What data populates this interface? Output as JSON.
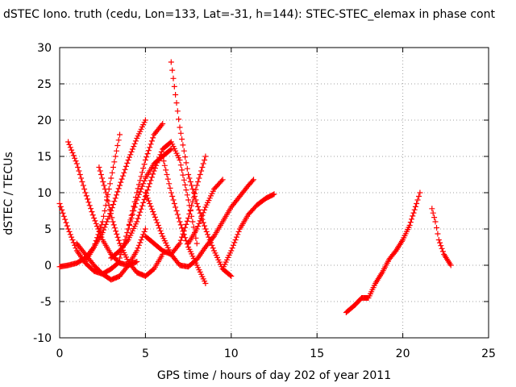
{
  "chart_data": {
    "type": "scatter",
    "title": "dSTEC Iono. truth (cedu, Lon=133, Lat=-31, h=144): STEC-STEC_elemax in phase cont",
    "xlabel": "GPS time / hours of day 202 of year 2011",
    "ylabel": "dSTEC  / TECUs",
    "xlim": [
      0,
      25
    ],
    "ylim": [
      -10,
      30
    ],
    "xticks": [
      "0",
      "5",
      "10",
      "15",
      "20",
      "25"
    ],
    "yticks": [
      "-10",
      "-5",
      "0",
      "5",
      "10",
      "15",
      "20",
      "25",
      "30"
    ],
    "grid": true,
    "marker": "+",
    "color": "#ff0000",
    "series": [
      {
        "x": [
          0.0,
          0.5,
          1.0,
          1.5,
          2.0,
          2.5,
          3.0,
          3.5
        ],
        "y": [
          8.5,
          5.0,
          2.0,
          0.3,
          -0.8,
          -1.2,
          -0.5,
          0.5
        ]
      },
      {
        "x": [
          0.0,
          0.5,
          1.0,
          1.5,
          2.0,
          2.5,
          3.0,
          3.5,
          4.0,
          4.5,
          5.0
        ],
        "y": [
          -0.2,
          0.0,
          0.3,
          1.0,
          2.5,
          4.5,
          7.5,
          11.0,
          14.5,
          17.5,
          20.0
        ]
      },
      {
        "x": [
          0.5,
          1.0,
          1.5,
          2.0,
          2.5,
          3.0,
          3.5,
          4.0,
          4.5
        ],
        "y": [
          17.0,
          14.0,
          10.0,
          6.5,
          3.5,
          1.5,
          0.3,
          0.0,
          0.5
        ]
      },
      {
        "x": [
          1.0,
          1.5,
          2.0,
          2.5,
          3.0,
          3.5,
          4.0,
          4.5,
          5.0
        ],
        "y": [
          3.0,
          1.5,
          0.0,
          -1.2,
          -2.0,
          -1.5,
          0.0,
          2.0,
          5.0
        ]
      },
      {
        "x": [
          1.5,
          2.0,
          2.5,
          3.0,
          3.5
        ],
        "y": [
          0.5,
          2.5,
          6.0,
          12.0,
          18.0
        ]
      },
      {
        "x": [
          2.3,
          2.7,
          3.1,
          3.5,
          4.0,
          4.5,
          5.0,
          5.5,
          6.0
        ],
        "y": [
          13.5,
          10.0,
          6.0,
          3.0,
          0.5,
          -1.0,
          -1.5,
          -0.5,
          1.5
        ]
      },
      {
        "x": [
          3.5,
          4.0,
          4.5,
          5.0,
          5.5,
          6.0
        ],
        "y": [
          1.0,
          5.0,
          10.0,
          14.5,
          18.0,
          19.5
        ]
      },
      {
        "x": [
          4.0,
          4.5,
          5.0,
          5.5,
          6.0,
          6.5
        ],
        "y": [
          5.0,
          9.0,
          12.0,
          14.0,
          15.0,
          16.0
        ]
      },
      {
        "x": [
          3.0,
          3.5,
          4.0,
          4.5,
          5.0,
          5.5,
          6.0,
          6.5,
          7.0,
          7.5,
          8.0
        ],
        "y": [
          1.0,
          2.0,
          3.5,
          6.0,
          9.5,
          13.0,
          16.0,
          17.0,
          14.5,
          9.0,
          3.0
        ]
      },
      {
        "x": [
          6.5,
          7.0,
          7.5,
          8.0,
          8.5,
          9.0,
          9.5,
          10.0
        ],
        "y": [
          28.0,
          19.0,
          12.5,
          8.5,
          5.0,
          2.0,
          -0.5,
          -1.5
        ]
      },
      {
        "x": [
          6.0,
          6.5,
          7.0,
          7.5,
          8.0,
          8.5
        ],
        "y": [
          15.0,
          10.0,
          6.0,
          2.5,
          0.0,
          -2.5
        ]
      },
      {
        "x": [
          5.0,
          5.5,
          6.0,
          6.5,
          7.0,
          7.5,
          8.0,
          8.5,
          9.0,
          9.5,
          10.0,
          10.5,
          11.0,
          11.3
        ],
        "y": [
          10.0,
          7.0,
          4.0,
          1.5,
          0.0,
          -0.2,
          0.8,
          2.5,
          4.0,
          6.0,
          8.0,
          9.5,
          11.0,
          11.8
        ]
      },
      {
        "x": [
          5.0,
          5.5,
          6.0,
          6.5,
          7.0,
          7.5,
          8.0,
          8.5
        ],
        "y": [
          4.0,
          3.0,
          2.0,
          1.5,
          3.0,
          6.5,
          11.0,
          15.0
        ]
      },
      {
        "x": [
          7.5,
          8.0,
          8.5,
          9.0,
          9.5
        ],
        "y": [
          3.0,
          5.0,
          8.0,
          10.5,
          11.8
        ]
      },
      {
        "x": [
          9.5,
          10.0,
          10.5,
          11.0,
          11.5,
          12.0,
          12.5
        ],
        "y": [
          -0.5,
          2.0,
          5.0,
          7.0,
          8.3,
          9.2,
          9.8
        ]
      },
      {
        "x": [
          16.7,
          17.2,
          17.6,
          18.0,
          18.4,
          18.8,
          19.2,
          19.6,
          20.0,
          20.4,
          20.8,
          21.0
        ],
        "y": [
          -6.5,
          -5.5,
          -4.5,
          -4.5,
          -2.5,
          -1.0,
          0.8,
          2.0,
          3.5,
          5.5,
          8.5,
          10.0
        ]
      },
      {
        "x": [
          21.7,
          21.9,
          22.1,
          22.4,
          22.8
        ],
        "y": [
          7.8,
          6.0,
          3.5,
          1.5,
          0.0
        ]
      }
    ]
  }
}
